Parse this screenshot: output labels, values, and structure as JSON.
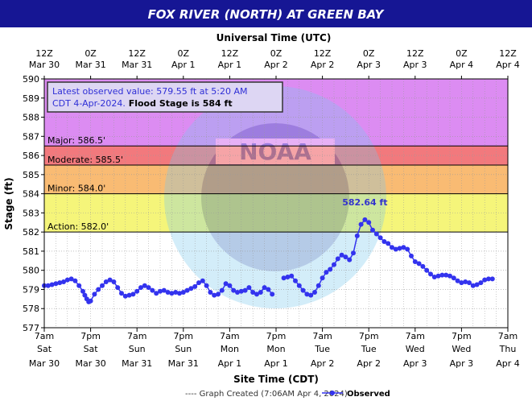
{
  "chart_data": {
    "type": "line",
    "title": "FOX RIVER (NORTH) AT GREEN BAY",
    "top_axis_label": "Universal Time (UTC)",
    "xlabel": "Site Time (CDT)",
    "ylabel": "Stage (ft)",
    "ylim": [
      577,
      590
    ],
    "y_ticks": [
      577,
      578,
      579,
      580,
      581,
      582,
      583,
      584,
      585,
      586,
      587,
      588,
      589,
      590
    ],
    "x_ticks_cdt": [
      [
        "7am",
        "Sat",
        "Mar 30"
      ],
      [
        "7pm",
        "Sat",
        "Mar 30"
      ],
      [
        "7am",
        "Sun",
        "Mar 31"
      ],
      [
        "7pm",
        "Sun",
        "Mar 31"
      ],
      [
        "7am",
        "Mon",
        "Apr 1"
      ],
      [
        "7pm",
        "Mon",
        "Apr 1"
      ],
      [
        "7am",
        "Tue",
        "Apr 2"
      ],
      [
        "7pm",
        "Tue",
        "Apr 2"
      ],
      [
        "7am",
        "Wed",
        "Apr 3"
      ],
      [
        "7pm",
        "Wed",
        "Apr 3"
      ],
      [
        "7am",
        "Thu",
        "Apr 4"
      ]
    ],
    "x_ticks_utc": [
      [
        "12Z",
        "Mar 30"
      ],
      [
        "0Z",
        "Mar 31"
      ],
      [
        "12Z",
        "Mar 31"
      ],
      [
        "0Z",
        "Apr 1"
      ],
      [
        "12Z",
        "Apr 1"
      ],
      [
        "0Z",
        "Apr 2"
      ],
      [
        "12Z",
        "Apr 2"
      ],
      [
        "0Z",
        "Apr 3"
      ],
      [
        "12Z",
        "Apr 3"
      ],
      [
        "0Z",
        "Apr 4"
      ],
      [
        "12Z",
        "Apr 4"
      ]
    ],
    "flood_bands": [
      {
        "label": "Major: 586.5'",
        "from": 586.5,
        "to": 590,
        "color": "#dc8cf2"
      },
      {
        "label": "Moderate: 585.5'",
        "from": 585.5,
        "to": 586.5,
        "color": "#f2797d"
      },
      {
        "label": "Minor: 584.0'",
        "from": 584.0,
        "to": 585.5,
        "color": "#f9bb73"
      },
      {
        "label": "Action: 582.0'",
        "from": 582.0,
        "to": 584.0,
        "color": "#f5f57a"
      }
    ],
    "info_box": {
      "line1": "Latest observed value: 579.55 ft at 5:20 AM",
      "line2": "CDT 4-Apr-2024.",
      "line2b": " Flood Stage is 584 ft"
    },
    "peak_label": "582.64 ft",
    "peak_value": 582.64,
    "legend": {
      "created": "---- Graph Created (7:06AM Apr 4, 2024)",
      "observed": "Observed"
    },
    "series": [
      {
        "name": "Observed",
        "color": "#3333ee",
        "x_hours_start": "Mar 30 7am CDT",
        "segments": [
          [
            [
              0,
              579.2
            ],
            [
              1,
              579.2
            ],
            [
              2,
              579.25
            ],
            [
              3,
              579.3
            ],
            [
              4,
              579.35
            ],
            [
              5,
              579.4
            ],
            [
              6,
              579.5
            ],
            [
              7,
              579.55
            ],
            [
              8,
              579.45
            ],
            [
              9,
              579.2
            ],
            [
              10,
              578.9
            ],
            [
              10.5,
              578.7
            ],
            [
              11,
              578.5
            ],
            [
              11.5,
              578.35
            ],
            [
              12,
              578.4
            ],
            [
              13,
              578.75
            ],
            [
              14,
              579.0
            ],
            [
              15,
              579.2
            ],
            [
              16,
              579.4
            ],
            [
              17,
              579.5
            ],
            [
              18,
              579.4
            ],
            [
              19,
              579.1
            ],
            [
              20,
              578.8
            ],
            [
              21,
              578.65
            ],
            [
              22,
              578.7
            ],
            [
              23,
              578.75
            ],
            [
              24,
              578.9
            ],
            [
              25,
              579.1
            ],
            [
              26,
              579.2
            ],
            [
              27,
              579.1
            ],
            [
              28,
              578.95
            ],
            [
              29,
              578.8
            ],
            [
              30,
              578.9
            ],
            [
              31,
              578.95
            ],
            [
              32,
              578.85
            ],
            [
              33,
              578.8
            ],
            [
              34,
              578.85
            ],
            [
              35,
              578.8
            ],
            [
              36,
              578.85
            ],
            [
              37,
              578.95
            ],
            [
              38,
              579.05
            ],
            [
              39,
              579.15
            ],
            [
              40,
              579.35
            ],
            [
              41,
              579.45
            ],
            [
              42,
              579.2
            ],
            [
              43,
              578.85
            ],
            [
              44,
              578.7
            ],
            [
              45,
              578.75
            ],
            [
              46,
              578.95
            ],
            [
              47,
              579.3
            ],
            [
              48,
              579.2
            ],
            [
              49,
              578.95
            ],
            [
              50,
              578.85
            ],
            [
              51,
              578.9
            ],
            [
              52,
              578.95
            ],
            [
              53,
              579.1
            ],
            [
              54,
              578.85
            ],
            [
              55,
              578.75
            ],
            [
              56,
              578.85
            ],
            [
              57,
              579.1
            ],
            [
              58,
              579.0
            ],
            [
              59,
              578.75
            ]
          ],
          [
            [
              62,
              579.6
            ],
            [
              63,
              579.65
            ],
            [
              64,
              579.7
            ],
            [
              65,
              579.45
            ],
            [
              66,
              579.2
            ],
            [
              67,
              578.95
            ],
            [
              68,
              578.75
            ],
            [
              69,
              578.7
            ],
            [
              70,
              578.85
            ],
            [
              71,
              579.2
            ],
            [
              72,
              579.6
            ],
            [
              73,
              579.9
            ],
            [
              74,
              580.05
            ],
            [
              75,
              580.3
            ],
            [
              76,
              580.6
            ],
            [
              77,
              580.8
            ],
            [
              78,
              580.7
            ],
            [
              79,
              580.55
            ],
            [
              80,
              580.9
            ],
            [
              81,
              581.8
            ],
            [
              82,
              582.4
            ],
            [
              83,
              582.64
            ],
            [
              84,
              582.5
            ],
            [
              85,
              582.1
            ],
            [
              86,
              581.9
            ],
            [
              87,
              581.7
            ],
            [
              88,
              581.5
            ],
            [
              89,
              581.4
            ],
            [
              90,
              581.2
            ],
            [
              91,
              581.1
            ],
            [
              92,
              581.15
            ],
            [
              93,
              581.2
            ],
            [
              94,
              581.1
            ],
            [
              95,
              580.75
            ],
            [
              96,
              580.45
            ],
            [
              97,
              580.35
            ],
            [
              98,
              580.2
            ],
            [
              99,
              580.0
            ],
            [
              100,
              579.8
            ],
            [
              101,
              579.65
            ],
            [
              102,
              579.7
            ],
            [
              103,
              579.75
            ],
            [
              104,
              579.75
            ],
            [
              105,
              579.7
            ],
            [
              106,
              579.6
            ],
            [
              107,
              579.45
            ],
            [
              108,
              579.35
            ],
            [
              109,
              579.4
            ],
            [
              110,
              579.35
            ],
            [
              111,
              579.2
            ],
            [
              112,
              579.25
            ],
            [
              113,
              579.35
            ],
            [
              114,
              579.5
            ],
            [
              115,
              579.55
            ],
            [
              116,
              579.55
            ]
          ]
        ]
      }
    ]
  }
}
